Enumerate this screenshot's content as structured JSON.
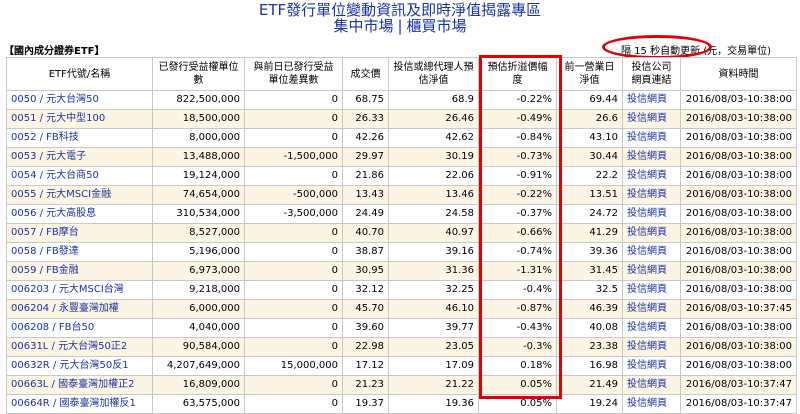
{
  "header": {
    "title": "ETF發行單位變動資訊及即時淨值揭露專區",
    "nav": [
      {
        "label": "集中市場"
      },
      {
        "label": "櫃買市場"
      }
    ],
    "nav_separator": "|"
  },
  "section_label": "【國內成分證券ETF】",
  "refresh_note": "隔 15 秒自動更新 (元，交易單位)",
  "table": {
    "columns": [
      "ETF代號/名稱",
      "已發行受益權單位數",
      "與前日已發行受益單位差異數",
      "成交價",
      "投信或總代理人預估淨值",
      "預估折溢價幅度",
      "前一營業日淨值",
      "投信公司網頁連結",
      "資料時間"
    ],
    "rows": [
      {
        "name": "0050 / 元大台灣50",
        "units": "822,500,000",
        "diff": "0",
        "price": "68.75",
        "est_nav": "68.9",
        "premium": "-0.22%",
        "prev_nav": "69.44",
        "link": "投信網頁",
        "time": "2016/08/03-10:38:00"
      },
      {
        "name": "0051 / 元大中型100",
        "units": "18,500,000",
        "diff": "0",
        "price": "26.33",
        "est_nav": "26.46",
        "premium": "-0.49%",
        "prev_nav": "26.6",
        "link": "投信網頁",
        "time": "2016/08/03-10:38:00"
      },
      {
        "name": "0052 / FB科技",
        "units": "8,000,000",
        "diff": "0",
        "price": "42.26",
        "est_nav": "42.62",
        "premium": "-0.84%",
        "prev_nav": "43.10",
        "link": "投信網頁",
        "time": "2016/08/03-10:38:00"
      },
      {
        "name": "0053 / 元大電子",
        "units": "13,488,000",
        "diff": "-1,500,000",
        "price": "29.97",
        "est_nav": "30.19",
        "premium": "-0.73%",
        "prev_nav": "30.44",
        "link": "投信網頁",
        "time": "2016/08/03-10:38:00"
      },
      {
        "name": "0054 / 元大台商50",
        "units": "19,124,000",
        "diff": "0",
        "price": "21.86",
        "est_nav": "22.06",
        "premium": "-0.91%",
        "prev_nav": "22.2",
        "link": "投信網頁",
        "time": "2016/08/03-10:38:00"
      },
      {
        "name": "0055 / 元大MSCI金融",
        "units": "74,654,000",
        "diff": "-500,000",
        "price": "13.43",
        "est_nav": "13.46",
        "premium": "-0.22%",
        "prev_nav": "13.51",
        "link": "投信網頁",
        "time": "2016/08/03-10:38:00"
      },
      {
        "name": "0056 / 元大高股息",
        "units": "310,534,000",
        "diff": "-3,500,000",
        "price": "24.49",
        "est_nav": "24.58",
        "premium": "-0.37%",
        "prev_nav": "24.72",
        "link": "投信網頁",
        "time": "2016/08/03-10:38:00"
      },
      {
        "name": "0057 / FB摩台",
        "units": "8,527,000",
        "diff": "0",
        "price": "40.70",
        "est_nav": "40.97",
        "premium": "-0.66%",
        "prev_nav": "41.29",
        "link": "投信網頁",
        "time": "2016/08/03-10:38:00"
      },
      {
        "name": "0058 / FB發達",
        "units": "5,196,000",
        "diff": "0",
        "price": "38.87",
        "est_nav": "39.16",
        "premium": "-0.74%",
        "prev_nav": "39.36",
        "link": "投信網頁",
        "time": "2016/08/03-10:38:00"
      },
      {
        "name": "0059 / FB金融",
        "units": "6,973,000",
        "diff": "0",
        "price": "30.95",
        "est_nav": "31.36",
        "premium": "-1.31%",
        "prev_nav": "31.45",
        "link": "投信網頁",
        "time": "2016/08/03-10:38:00"
      },
      {
        "name": "006203 / 元大MSCI台灣",
        "units": "9,218,000",
        "diff": "0",
        "price": "32.12",
        "est_nav": "32.25",
        "premium": "-0.4%",
        "prev_nav": "32.5",
        "link": "投信網頁",
        "time": "2016/08/03-10:38:00"
      },
      {
        "name": "006204 / 永豐臺灣加權",
        "units": "6,000,000",
        "diff": "0",
        "price": "45.70",
        "est_nav": "46.10",
        "premium": "-0.87%",
        "prev_nav": "46.39",
        "link": "投信網頁",
        "time": "2016/08/03-10:37:45"
      },
      {
        "name": "006208 / FB台50",
        "units": "4,040,000",
        "diff": "0",
        "price": "39.60",
        "est_nav": "39.77",
        "premium": "-0.43%",
        "prev_nav": "40.08",
        "link": "投信網頁",
        "time": "2016/08/03-10:38:00"
      },
      {
        "name": "00631L / 元大台灣50正2",
        "units": "90,584,000",
        "diff": "0",
        "price": "22.98",
        "est_nav": "23.05",
        "premium": "-0.3%",
        "prev_nav": "23.38",
        "link": "投信網頁",
        "time": "2016/08/03-10:38:00"
      },
      {
        "name": "00632R / 元大台灣50反1",
        "units": "4,207,649,000",
        "diff": "15,000,000",
        "price": "17.12",
        "est_nav": "17.09",
        "premium": "0.18%",
        "prev_nav": "16.98",
        "link": "投信網頁",
        "time": "2016/08/03-10:38:00"
      },
      {
        "name": "00663L / 國泰臺灣加權正2",
        "units": "16,809,000",
        "diff": "0",
        "price": "21.23",
        "est_nav": "21.22",
        "premium": "0.05%",
        "prev_nav": "21.49",
        "link": "投信網頁",
        "time": "2016/08/03-10:37:47"
      },
      {
        "name": "00664R / 國泰臺灣加權反1",
        "units": "63,575,000",
        "diff": "0",
        "price": "19.37",
        "est_nav": "19.36",
        "premium": "0.05%",
        "prev_nav": "19.24",
        "link": "投信網頁",
        "time": "2016/08/03-10:37:47"
      }
    ]
  },
  "colors": {
    "link": "#1a33a6",
    "alt_row": "#fdf5e4",
    "highlight": "#e00000"
  }
}
